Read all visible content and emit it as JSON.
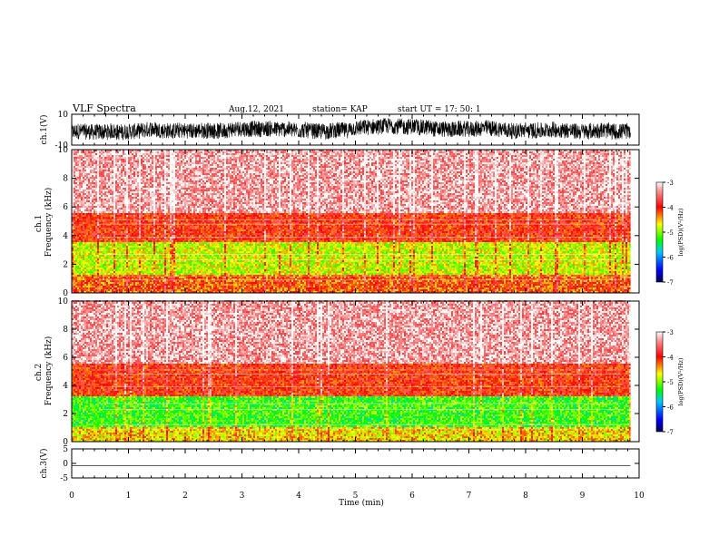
{
  "header": {
    "title": "VLF Spectra",
    "date": "Aug.12, 2021",
    "station": "station= KAP",
    "start": "start  UT  =   17: 50: 1"
  },
  "chart_data": [
    {
      "type": "line",
      "id": "ch1-waveform",
      "ylabel": "ch.1(V)",
      "ylim": [
        -10,
        10
      ],
      "yticks": [
        10,
        -10
      ],
      "xlim": [
        0,
        10
      ],
      "note_series": "dense black voltage trace, approx range -8 to +8 V, mean near -1 V"
    },
    {
      "type": "heatmap",
      "id": "ch1-spectrogram",
      "ylabel": "ch.1\nFrequency (kHz)",
      "ylim": [
        0,
        10
      ],
      "yticks": [
        0,
        2,
        4,
        6,
        8,
        10
      ],
      "xlim": [
        0,
        9.85
      ],
      "colorbar": {
        "label": "log(PSD)(V²/Hz)",
        "range": [
          -7,
          -3
        ],
        "ticks": [
          -3,
          -4,
          -5,
          -6,
          -7
        ]
      },
      "bands": [
        {
          "from_khz": 0,
          "to_khz": 1.2,
          "level": -4.2
        },
        {
          "from_khz": 1.2,
          "to_khz": 3.5,
          "level": -4.8
        },
        {
          "from_khz": 3.5,
          "to_khz": 5.5,
          "level": -4.0
        },
        {
          "from_khz": 5.5,
          "to_khz": 10,
          "level": -3.3
        }
      ]
    },
    {
      "type": "heatmap",
      "id": "ch2-spectrogram",
      "ylabel": "ch.2\nFrequency (kHz)",
      "ylim": [
        0,
        10
      ],
      "yticks": [
        0,
        2,
        4,
        6,
        8,
        10
      ],
      "xlim": [
        0,
        9.85
      ],
      "colorbar": {
        "label": "log(PSD)(V²/Hz)",
        "range": [
          -7,
          -3
        ],
        "ticks": [
          -3,
          -4,
          -5,
          -6,
          -7
        ]
      },
      "bands": [
        {
          "from_khz": 0,
          "to_khz": 1.0,
          "level": -4.6
        },
        {
          "from_khz": 1.0,
          "to_khz": 3.2,
          "level": -5.2
        },
        {
          "from_khz": 3.2,
          "to_khz": 5.5,
          "level": -4.0
        },
        {
          "from_khz": 5.5,
          "to_khz": 10,
          "level": -3.3
        }
      ]
    },
    {
      "type": "line",
      "id": "ch3-waveform",
      "ylabel": "ch.3(V)",
      "ylim": [
        -5,
        5
      ],
      "yticks": [
        5,
        0,
        -5
      ],
      "xlim": [
        0,
        10
      ],
      "note_series": "dense black trace, approx range -2.3 to -0.8 V"
    }
  ],
  "xaxis": {
    "label": "Time  (min)",
    "ticks": [
      0,
      1,
      2,
      3,
      4,
      5,
      6,
      7,
      8,
      9,
      10
    ]
  },
  "colors": {
    "cb_stops": [
      "#000080",
      "#0000ff",
      "#00c8ff",
      "#00ff00",
      "#ffff00",
      "#ff0000",
      "#ff9999",
      "#ffffff"
    ]
  }
}
